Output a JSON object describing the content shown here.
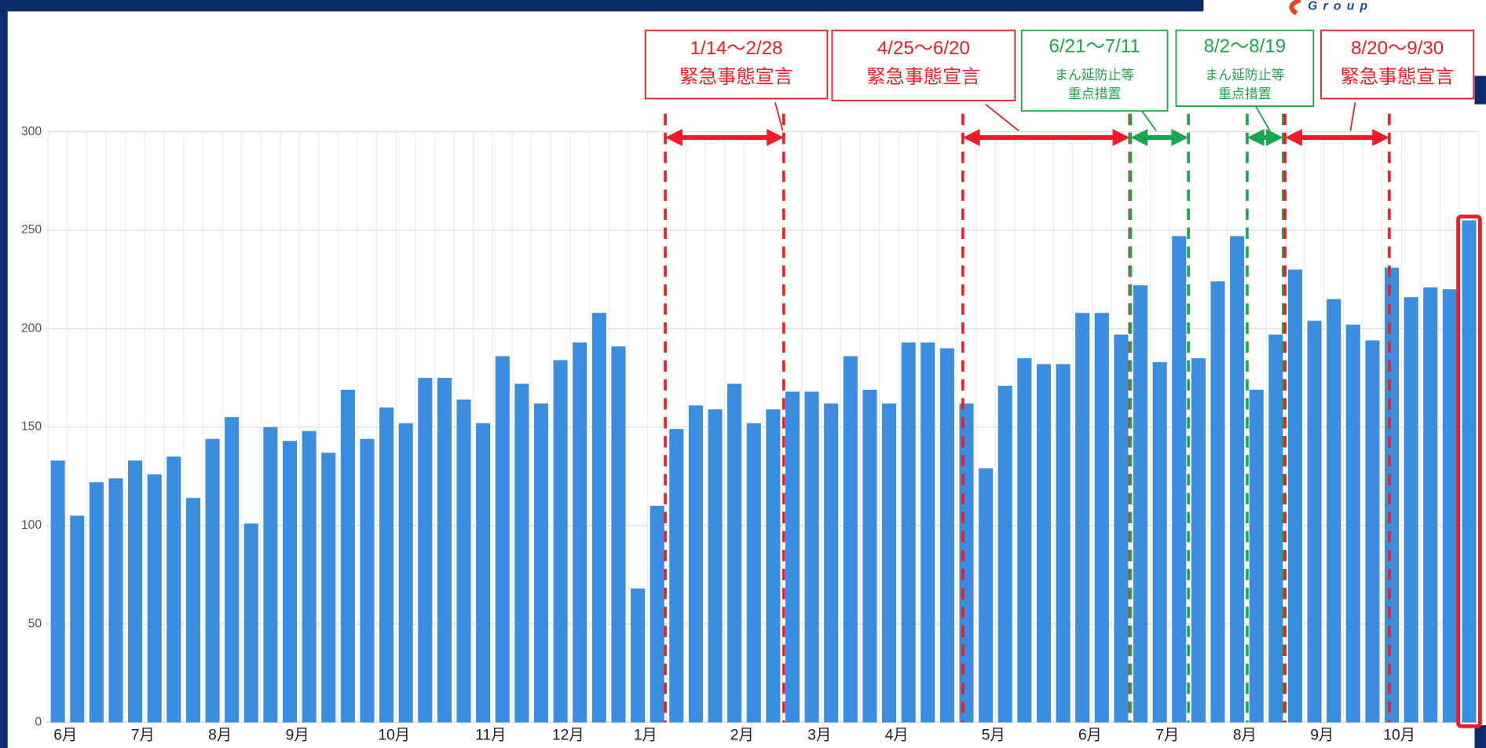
{
  "chart_data": {
    "type": "bar",
    "logo": "Group",
    "categories": [
      "6月",
      null,
      null,
      null,
      "7月",
      null,
      null,
      null,
      "8月",
      null,
      null,
      null,
      "9月",
      null,
      null,
      null,
      null,
      "10月",
      null,
      null,
      null,
      null,
      "11月",
      null,
      null,
      null,
      "12月",
      null,
      null,
      null,
      "1月",
      null,
      null,
      null,
      null,
      "2月",
      null,
      null,
      null,
      "3月",
      null,
      null,
      null,
      "4月",
      null,
      null,
      null,
      null,
      "5月",
      null,
      null,
      null,
      null,
      "6月",
      null,
      null,
      null,
      "7月",
      null,
      null,
      null,
      "8月",
      null,
      null,
      null,
      "9月",
      null,
      null,
      null,
      "10月",
      null,
      null,
      null,
      null
    ],
    "values": [
      133,
      105,
      122,
      124,
      133,
      126,
      135,
      114,
      144,
      155,
      101,
      150,
      143,
      148,
      137,
      169,
      144,
      160,
      152,
      175,
      175,
      164,
      152,
      186,
      172,
      162,
      184,
      193,
      208,
      191,
      68,
      110,
      149,
      161,
      159,
      172,
      152,
      159,
      168,
      168,
      162,
      186,
      169,
      162,
      193,
      193,
      190,
      162,
      129,
      171,
      185,
      182,
      182,
      208,
      208,
      197,
      222,
      183,
      247,
      185,
      224,
      247,
      169,
      197,
      230,
      204,
      215,
      202,
      194,
      231,
      216,
      221,
      220,
      255
    ],
    "color": "#3b8de0",
    "ylim": [
      0,
      300
    ],
    "yticks": [
      0,
      50,
      100,
      150,
      200,
      250,
      300
    ],
    "grid": true,
    "annotations": [
      {
        "lines": [
          "1/14～2/28",
          "緊急事態宣言"
        ],
        "color": "#ee1c25"
      },
      {
        "lines": [
          "4/25～6/20",
          "緊急事態宣言"
        ],
        "color": "#ee1c25"
      },
      {
        "lines": [
          "6/21～7/11",
          "まん延防止等",
          "重点措置"
        ],
        "color": "#1aa64a"
      },
      {
        "lines": [
          "8/2～8/19",
          "まん延防止等",
          "重点措置"
        ],
        "color": "#1aa64a"
      },
      {
        "lines": [
          "8/20～9/30",
          "緊急事態宣言"
        ],
        "color": "#ee1c25"
      }
    ]
  }
}
